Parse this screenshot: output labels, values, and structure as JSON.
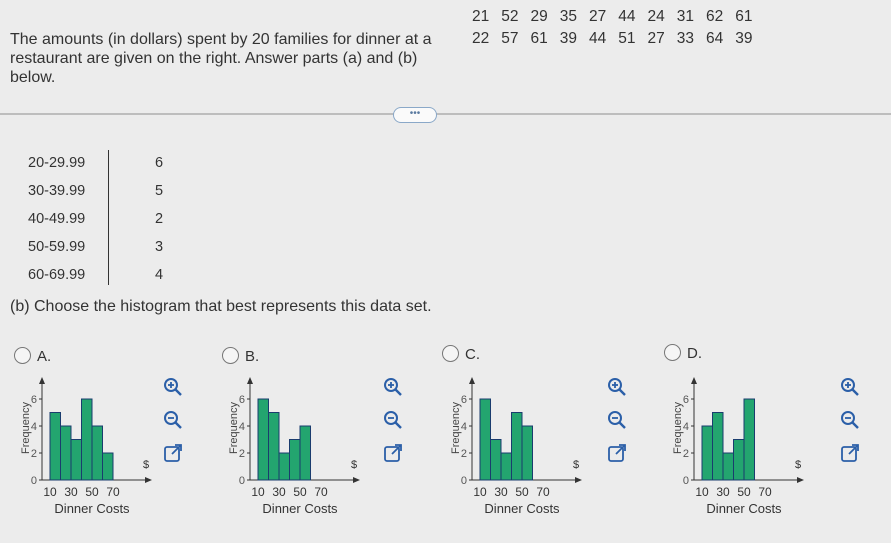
{
  "question": {
    "text": "The amounts (in dollars) spent by 20 families for dinner at a restaurant are given on the right. Answer parts (a) and (b) below."
  },
  "dataset": {
    "row1": [
      "21",
      "52",
      "29",
      "35",
      "27",
      "44",
      "24",
      "31",
      "62",
      "61"
    ],
    "row2": [
      "22",
      "57",
      "61",
      "39",
      "44",
      "51",
      "27",
      "33",
      "64",
      "39"
    ]
  },
  "more_button": {
    "label": "•••"
  },
  "frequency_table": {
    "ranges": [
      "20-29.99",
      "30-39.99",
      "40-49.99",
      "50-59.99",
      "60-69.99"
    ],
    "frequencies": [
      "6",
      "5",
      "2",
      "3",
      "4"
    ]
  },
  "part_b": {
    "prompt": "(b) Choose the histogram that best represents this data set."
  },
  "options": [
    {
      "label": "A."
    },
    {
      "label": "B."
    },
    {
      "label": "C."
    },
    {
      "label": "D."
    }
  ],
  "chart_data": [
    {
      "type": "bar",
      "option": "A",
      "xlabel": "Dinner Costs",
      "ylabel": "Frequency",
      "x_tick_labels": [
        "10",
        "30",
        "50",
        "70"
      ],
      "y_tick_labels": [
        "0",
        "2",
        "4",
        "6"
      ],
      "currency_label": "$",
      "ylim": [
        0,
        7
      ],
      "values": [
        5,
        4,
        3,
        6,
        4,
        2
      ]
    },
    {
      "type": "bar",
      "option": "B",
      "xlabel": "Dinner Costs",
      "ylabel": "Frequency",
      "x_tick_labels": [
        "10",
        "30",
        "50",
        "70"
      ],
      "y_tick_labels": [
        "0",
        "2",
        "4",
        "6"
      ],
      "currency_label": "$",
      "ylim": [
        0,
        7
      ],
      "values": [
        6,
        5,
        2,
        3,
        4
      ]
    },
    {
      "type": "bar",
      "option": "C",
      "xlabel": "Dinner Costs",
      "ylabel": "Frequency",
      "x_tick_labels": [
        "10",
        "30",
        "50",
        "70"
      ],
      "y_tick_labels": [
        "0",
        "2",
        "4",
        "6"
      ],
      "currency_label": "$",
      "ylim": [
        0,
        7
      ],
      "values": [
        6,
        3,
        2,
        5,
        4
      ]
    },
    {
      "type": "bar",
      "option": "D",
      "xlabel": "Dinner Costs",
      "ylabel": "Frequency",
      "x_tick_labels": [
        "10",
        "30",
        "50",
        "70"
      ],
      "y_tick_labels": [
        "0",
        "2",
        "4",
        "6"
      ],
      "currency_label": "$",
      "ylim": [
        0,
        7
      ],
      "values": [
        4,
        5,
        2,
        3,
        6
      ]
    }
  ],
  "colors": {
    "bar_fill": "#23a56f",
    "bar_stroke": "#1a3c6e",
    "icon": "#2b5fa8",
    "axis": "#333333"
  },
  "icons": [
    "zoom-in-icon",
    "zoom-out-icon",
    "external-link-icon"
  ]
}
